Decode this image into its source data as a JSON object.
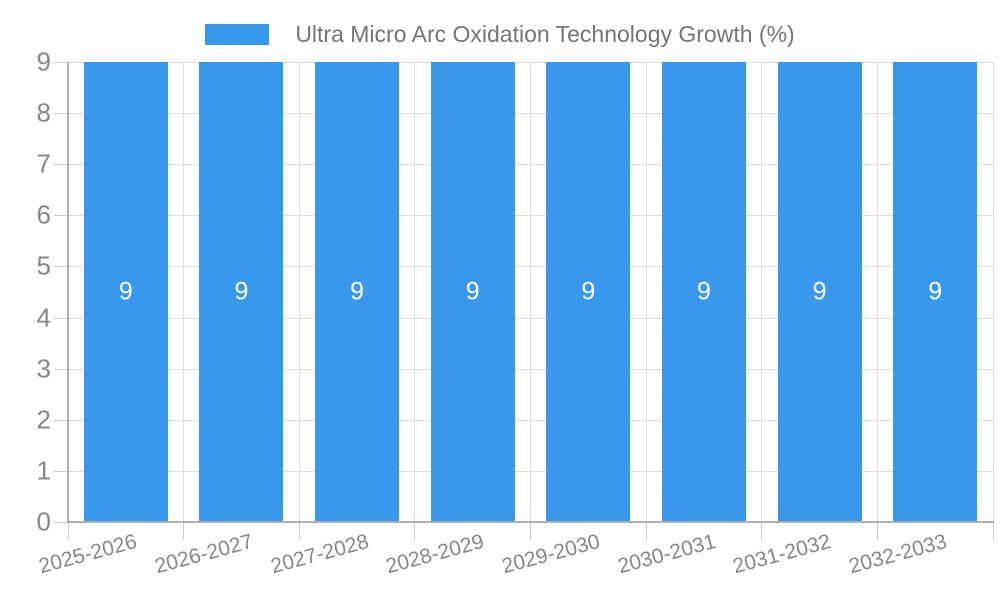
{
  "chart_data": {
    "type": "bar",
    "title": "Ultra Micro Arc Oxidation Technology Growth (%)",
    "categories": [
      "2025-2026",
      "2026-2027",
      "2027-2028",
      "2028-2029",
      "2029-2030",
      "2030-2031",
      "2031-2032",
      "2032-2033"
    ],
    "series": [
      {
        "name": "Ultra Micro Arc Oxidation Technology Growth (%)",
        "values": [
          9,
          9,
          9,
          9,
          9,
          9,
          9,
          9
        ]
      }
    ],
    "bar_value_labels": [
      "9",
      "9",
      "9",
      "9",
      "9",
      "9",
      "9",
      "9"
    ],
    "xlabel": "",
    "ylabel": "",
    "ylim": [
      0,
      9
    ],
    "yticks": [
      0,
      1,
      2,
      3,
      4,
      5,
      6,
      7,
      8,
      9
    ],
    "grid": true,
    "legend_position": "top-center",
    "x_label_rotation_deg": -15,
    "colors": {
      "bar": "#3898EC",
      "bar_label": "#FFFFFF",
      "axis_text": "#878787",
      "title_text": "#757575",
      "gridline": "#DDDDDD",
      "spine": "#B0B0B0",
      "tick": "#CCCCCC",
      "background": "#FFFFFF"
    }
  }
}
